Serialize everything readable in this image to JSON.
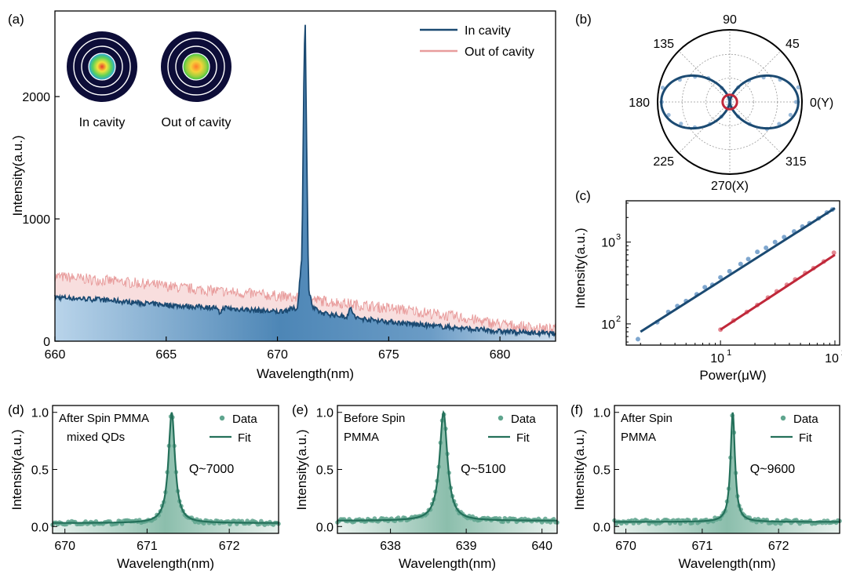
{
  "chart_data": [
    {
      "id": "a",
      "panel_label": "(a)",
      "type": "line",
      "xlabel": "Wavelength(nm)",
      "ylabel": "Intensity(a.u.)",
      "xlim": [
        660,
        682.5
      ],
      "ylim": [
        0,
        2700
      ],
      "xticks": [
        660,
        665,
        670,
        675,
        680
      ],
      "yticks": [
        0,
        1000,
        2000
      ],
      "legend_position": "top-right",
      "series": [
        {
          "name": "In cavity",
          "color": "#1b4a72",
          "fill": "#4b86b8",
          "x": [
            660,
            662,
            664,
            666,
            667.2,
            667.4,
            667.6,
            668,
            670,
            670.9,
            671.1,
            671.2,
            671.25,
            671.3,
            671.4,
            671.6,
            672,
            673.1,
            673.3,
            673.5,
            674,
            676,
            678,
            680,
            682.5
          ],
          "y": [
            360,
            340,
            310,
            285,
            275,
            230,
            275,
            265,
            240,
            270,
            700,
            2330,
            2580,
            1800,
            420,
            270,
            230,
            200,
            270,
            190,
            180,
            140,
            110,
            80,
            60
          ]
        },
        {
          "name": "Out of cavity",
          "color": "#e89c9c",
          "fill": "#f6d6d6",
          "x": [
            660,
            662,
            664,
            666,
            668,
            670,
            672,
            674,
            676,
            678,
            680,
            682.5
          ],
          "y": [
            530,
            500,
            470,
            430,
            400,
            370,
            330,
            290,
            250,
            200,
            140,
            90
          ]
        }
      ],
      "insets": [
        {
          "label": "In cavity"
        },
        {
          "label": "Out of cavity"
        }
      ]
    },
    {
      "id": "b",
      "panel_label": "(b)",
      "type": "polar",
      "angle_labels": [
        "90",
        "45",
        "0(Y)",
        "315",
        "270(X)",
        "225",
        "180",
        "135"
      ],
      "series": [
        {
          "name": "In cavity",
          "color": "#1b4a72",
          "model": "cos^2",
          "max": 1.0
        },
        {
          "name": "Out of cavity",
          "color": "#c0283a",
          "model": "isotropic",
          "max": 0.1
        }
      ]
    },
    {
      "id": "c",
      "panel_label": "(c)",
      "type": "scatter",
      "xlabel": "Power(μW)",
      "ylabel": "Intensity(a.u.)",
      "xscale": "log",
      "yscale": "log",
      "xlim": [
        1.5,
        110
      ],
      "ylim": [
        55,
        3200
      ],
      "series": [
        {
          "name": "In cavity",
          "color": "#1b4a72",
          "point_color": "#7fa7cf",
          "fit": [
            [
              2,
              80
            ],
            [
              100,
              2600
            ]
          ],
          "points": [
            [
              1.9,
              65
            ],
            [
              2.8,
              105
            ],
            [
              3.5,
              140
            ],
            [
              4.2,
              165
            ],
            [
              5,
              190
            ],
            [
              6.2,
              230
            ],
            [
              7.3,
              280
            ],
            [
              8.5,
              300
            ],
            [
              10,
              370
            ],
            [
              12,
              440
            ],
            [
              15,
              540
            ],
            [
              17.5,
              620
            ],
            [
              21,
              760
            ],
            [
              25,
              850
            ],
            [
              30,
              1000
            ],
            [
              36,
              1150
            ],
            [
              44,
              1350
            ],
            [
              52,
              1550
            ],
            [
              60,
              1700
            ],
            [
              72,
              1950
            ],
            [
              85,
              2300
            ],
            [
              95,
              2500
            ]
          ]
        },
        {
          "name": "Out of cavity",
          "color": "#c0283a",
          "point_color": "#e48a94",
          "fit": [
            [
              10,
              85
            ],
            [
              100,
              700
            ]
          ],
          "points": [
            [
              10,
              85
            ],
            [
              13,
              110
            ],
            [
              17,
              140
            ],
            [
              21,
              170
            ],
            [
              26,
              210
            ],
            [
              31,
              250
            ],
            [
              38,
              300
            ],
            [
              45,
              350
            ],
            [
              55,
              420
            ],
            [
              65,
              480
            ],
            [
              80,
              580
            ],
            [
              98,
              740
            ]
          ]
        }
      ]
    },
    {
      "id": "d",
      "panel_label": "(d)",
      "type": "line",
      "peak_shape": "lorentzian",
      "xlabel": "Wavelength(nm)",
      "ylabel": "Intensity(a.u.)",
      "xlim": [
        669.85,
        672.6
      ],
      "ylim": [
        -0.06,
        1.06
      ],
      "xticks": [
        670,
        671,
        672
      ],
      "yticks": [
        0.0,
        0.5,
        1.0
      ],
      "fit": {
        "center": 671.3,
        "fwhm": 0.096,
        "baseline": 0.03
      },
      "annotation": [
        "After Spin PMMA",
        "mixed QDs"
      ],
      "q_label": "Q~7000",
      "legend": [
        {
          "name": "Data"
        },
        {
          "name": "Fit"
        }
      ]
    },
    {
      "id": "e",
      "panel_label": "(e)",
      "type": "line",
      "peak_shape": "lorentzian",
      "xlabel": "Wavelength(nm)",
      "ylabel": "Intensity(a.u.)",
      "xlim": [
        637.3,
        640.2
      ],
      "ylim": [
        -0.06,
        1.06
      ],
      "xticks": [
        638,
        639,
        640
      ],
      "yticks": [
        0.0,
        0.5,
        1.0
      ],
      "fit": {
        "center": 638.7,
        "fwhm": 0.125,
        "baseline": 0.05
      },
      "annotation": [
        "Before Spin",
        "PMMA"
      ],
      "q_label": "Q~5100",
      "legend": [
        {
          "name": "Data"
        },
        {
          "name": "Fit"
        }
      ]
    },
    {
      "id": "f",
      "panel_label": "(f)",
      "type": "line",
      "peak_shape": "lorentzian",
      "xlabel": "Wavelength(nm)",
      "ylabel": "Intensity(a.u.)",
      "xlim": [
        669.85,
        672.8
      ],
      "ylim": [
        -0.06,
        1.06
      ],
      "xticks": [
        670,
        671,
        672
      ],
      "yticks": [
        0.0,
        0.5,
        1.0
      ],
      "fit": {
        "center": 671.4,
        "fwhm": 0.07,
        "baseline": 0.04
      },
      "annotation": [
        "After Spin",
        "PMMA"
      ],
      "q_label": "Q~9600",
      "legend": [
        {
          "name": "Data"
        },
        {
          "name": "Fit"
        }
      ]
    }
  ]
}
